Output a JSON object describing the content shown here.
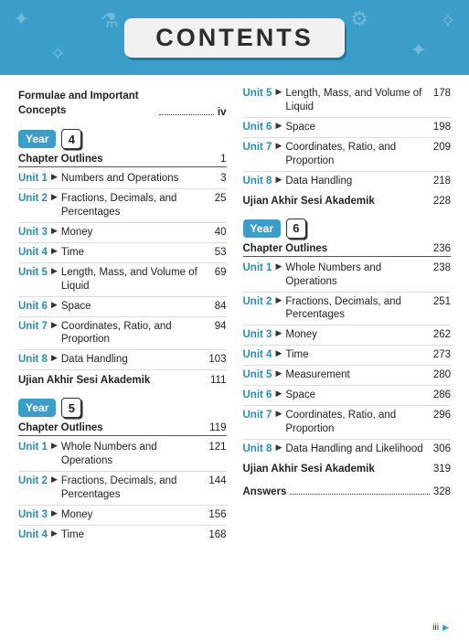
{
  "theme": {
    "accent": "#3b9ec9",
    "banner_bg": "#f1f1f1",
    "text": "#222222"
  },
  "header": {
    "title": "CONTENTS"
  },
  "front": {
    "label": "Formulae and Important Concepts",
    "page": "iv"
  },
  "left": {
    "years": [
      {
        "year_label": "Year",
        "year_num": "4",
        "chapter_outlines": "Chapter Outlines",
        "chapter_page": "1",
        "units": [
          {
            "tag": "Unit 1",
            "title": "Numbers and Operations",
            "page": "3"
          },
          {
            "tag": "Unit 2",
            "title": "Fractions, Decimals, and Percentages",
            "page": "25"
          },
          {
            "tag": "Unit 3",
            "title": "Money",
            "page": "40"
          },
          {
            "tag": "Unit 4",
            "title": "Time",
            "page": "53"
          },
          {
            "tag": "Unit 5",
            "title": "Length, Mass, and Volume of Liquid",
            "page": "69"
          },
          {
            "tag": "Unit 6",
            "title": "Space",
            "page": "84"
          },
          {
            "tag": "Unit 7",
            "title": "Coordinates, Ratio, and Proportion",
            "page": "94"
          },
          {
            "tag": "Unit 8",
            "title": "Data Handling",
            "page": "103"
          }
        ],
        "exam": {
          "label": "Ujian Akhir Sesi Akademik",
          "page": "111"
        }
      },
      {
        "year_label": "Year",
        "year_num": "5",
        "chapter_outlines": "Chapter Outlines",
        "chapter_page": "119",
        "units": [
          {
            "tag": "Unit 1",
            "title": "Whole Numbers and Operations",
            "page": "121"
          },
          {
            "tag": "Unit 2",
            "title": "Fractions, Decimals, and Percentages",
            "page": "144"
          },
          {
            "tag": "Unit 3",
            "title": "Money",
            "page": "156"
          },
          {
            "tag": "Unit 4",
            "title": "Time",
            "page": "168"
          }
        ]
      }
    ]
  },
  "right": {
    "continuation_units": [
      {
        "tag": "Unit 5",
        "title": "Length, Mass, and Volume of Liquid",
        "page": "178"
      },
      {
        "tag": "Unit 6",
        "title": "Space",
        "page": "198"
      },
      {
        "tag": "Unit 7",
        "title": "Coordinates, Ratio, and Proportion",
        "page": "209"
      },
      {
        "tag": "Unit 8",
        "title": "Data Handling",
        "page": "218"
      }
    ],
    "continuation_exam": {
      "label": "Ujian Akhir Sesi Akademik",
      "page": "228"
    },
    "year6": {
      "year_label": "Year",
      "year_num": "6",
      "chapter_outlines": "Chapter Outlines",
      "chapter_page": "236",
      "units": [
        {
          "tag": "Unit 1",
          "title": "Whole Numbers and Operations",
          "page": "238"
        },
        {
          "tag": "Unit 2",
          "title": "Fractions, Decimals, and Percentages",
          "page": "251"
        },
        {
          "tag": "Unit 3",
          "title": "Money",
          "page": "262"
        },
        {
          "tag": "Unit 4",
          "title": "Time",
          "page": "273"
        },
        {
          "tag": "Unit 5",
          "title": "Measurement",
          "page": "280"
        },
        {
          "tag": "Unit 6",
          "title": "Space",
          "page": "286"
        },
        {
          "tag": "Unit 7",
          "title": "Coordinates, Ratio, and Proportion",
          "page": "296"
        },
        {
          "tag": "Unit 8",
          "title": "Data Handling and Likelihood",
          "page": "306"
        }
      ],
      "exam": {
        "label": "Ujian Akhir Sesi Akademik",
        "page": "319"
      }
    },
    "answers": {
      "label": "Answers",
      "page": "328"
    }
  },
  "footer": {
    "page_num": "iii"
  }
}
